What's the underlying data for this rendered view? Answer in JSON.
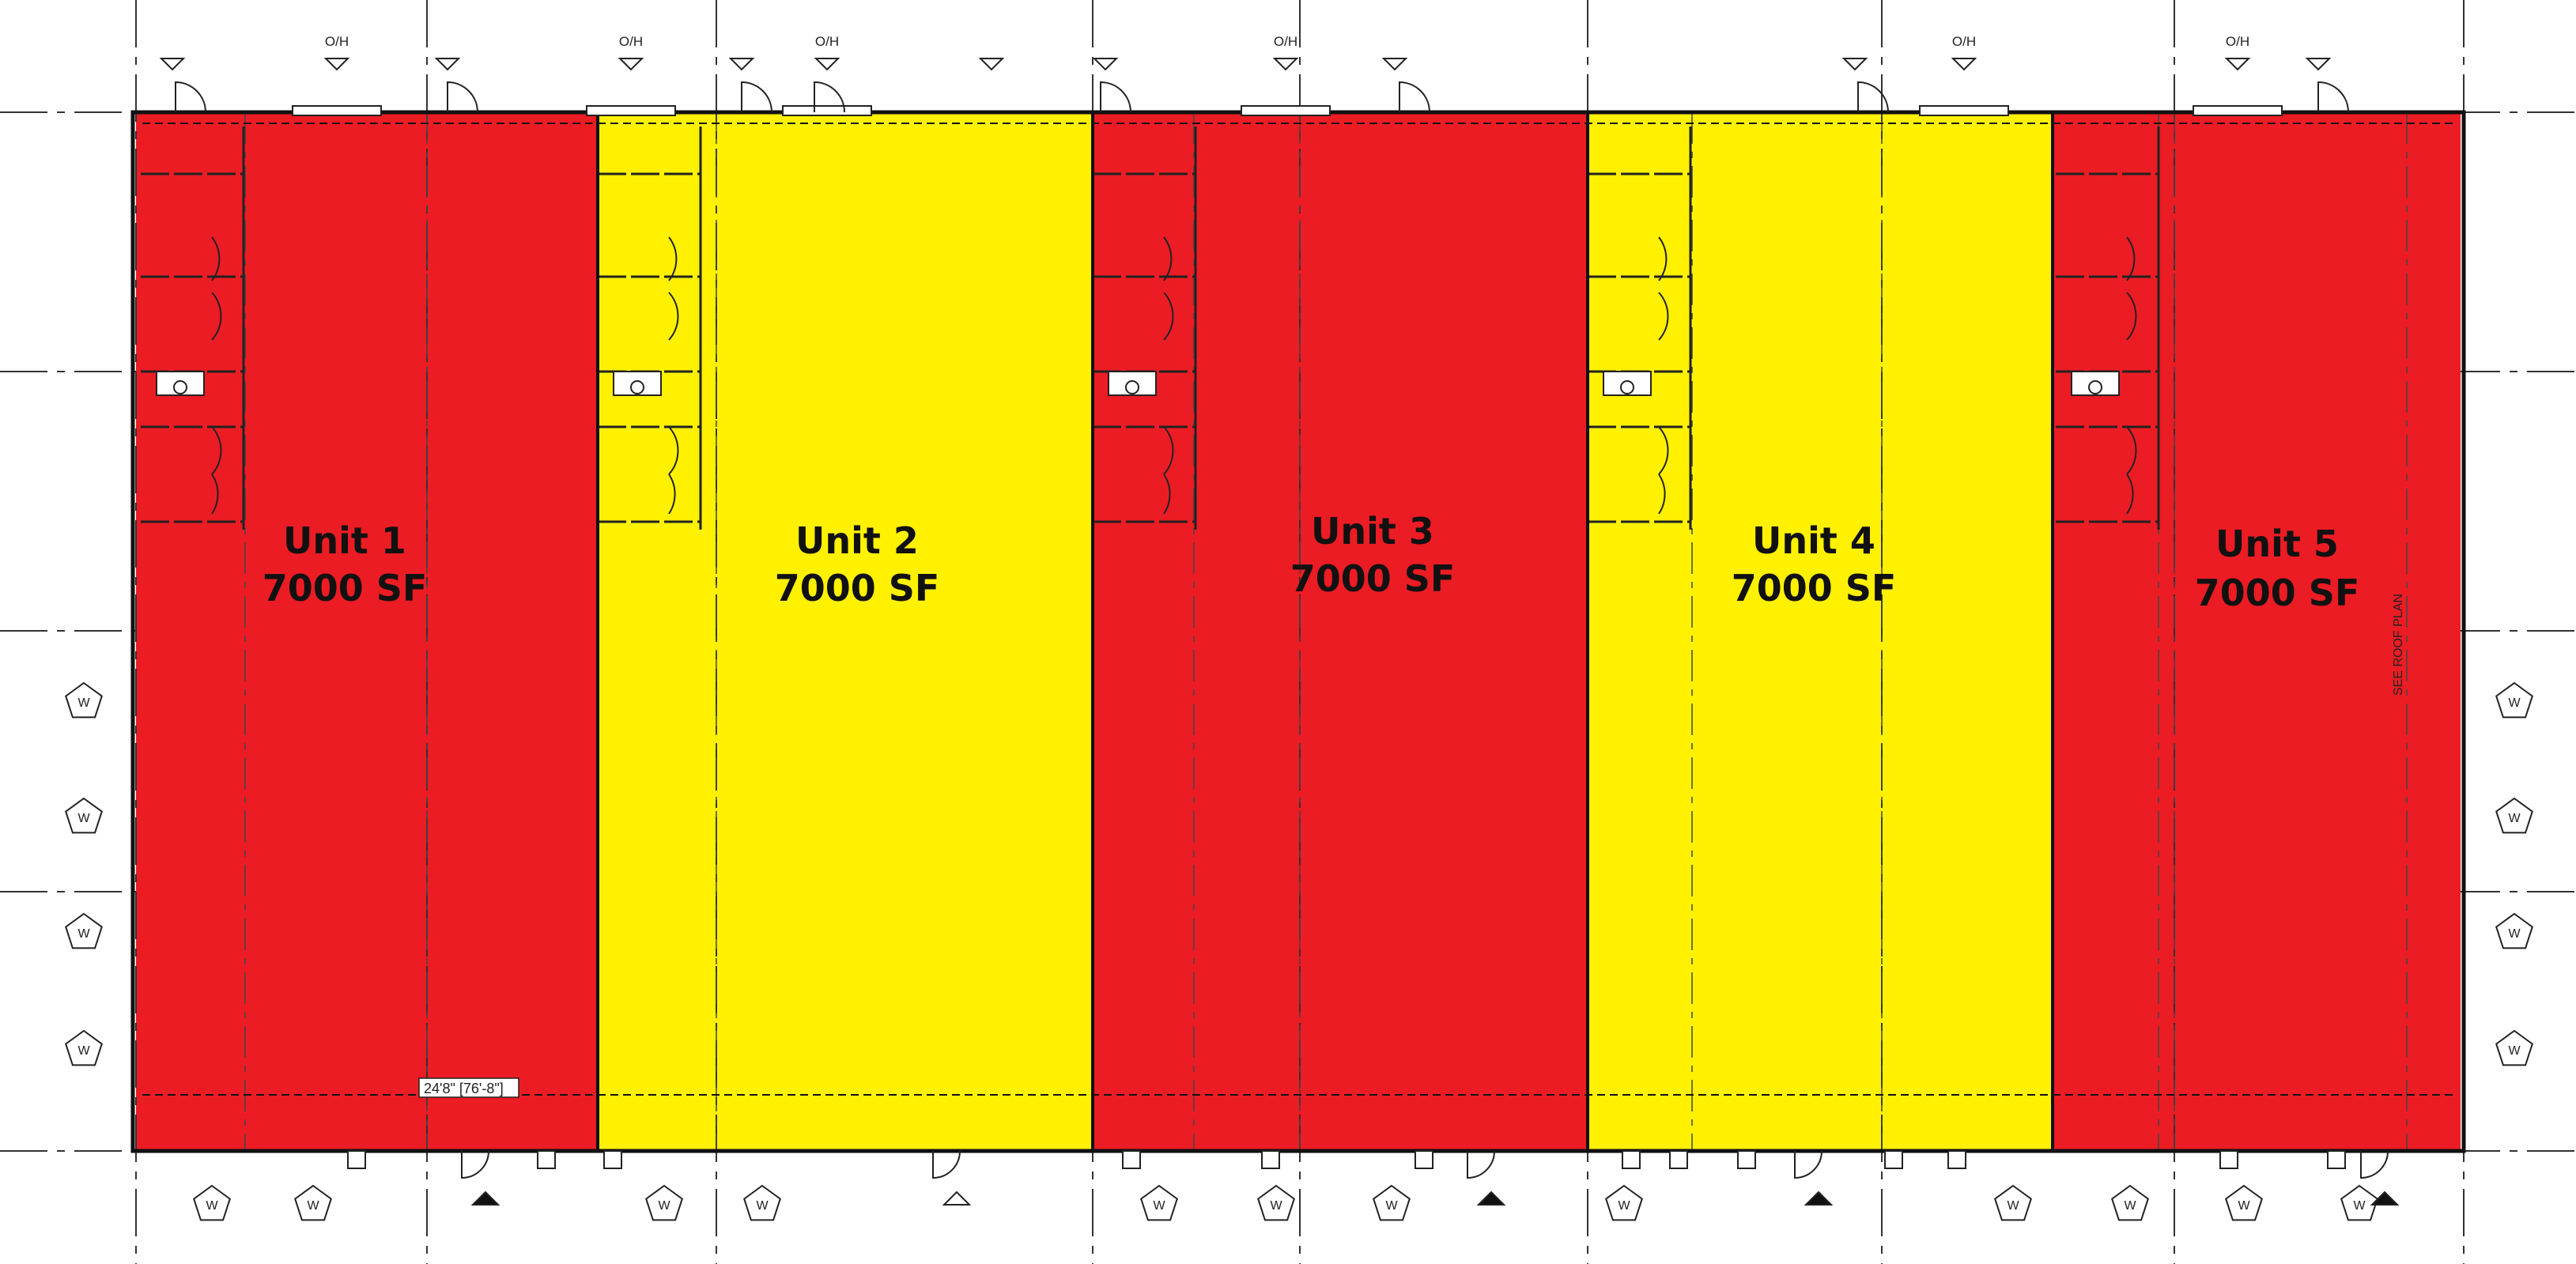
{
  "colors": {
    "red": "#ec1c24",
    "yellow": "#fff100",
    "line": "#222222",
    "gridline": "#333333"
  },
  "units": [
    {
      "name": "Unit 1",
      "area": "7000 SF",
      "color": "red"
    },
    {
      "name": "Unit 2",
      "area": "7000 SF",
      "color": "yellow"
    },
    {
      "name": "Unit 3",
      "area": "7000 SF",
      "color": "red"
    },
    {
      "name": "Unit 4",
      "area": "7000 SF",
      "color": "yellow"
    },
    {
      "name": "Unit 5",
      "area": "7000 SF",
      "color": "red"
    }
  ],
  "overhead_door_label": "O/H",
  "window_tag": "W",
  "dimension_note": "24'8\" [76'-8\"]",
  "side_note": "SEE ROOF PLAN"
}
